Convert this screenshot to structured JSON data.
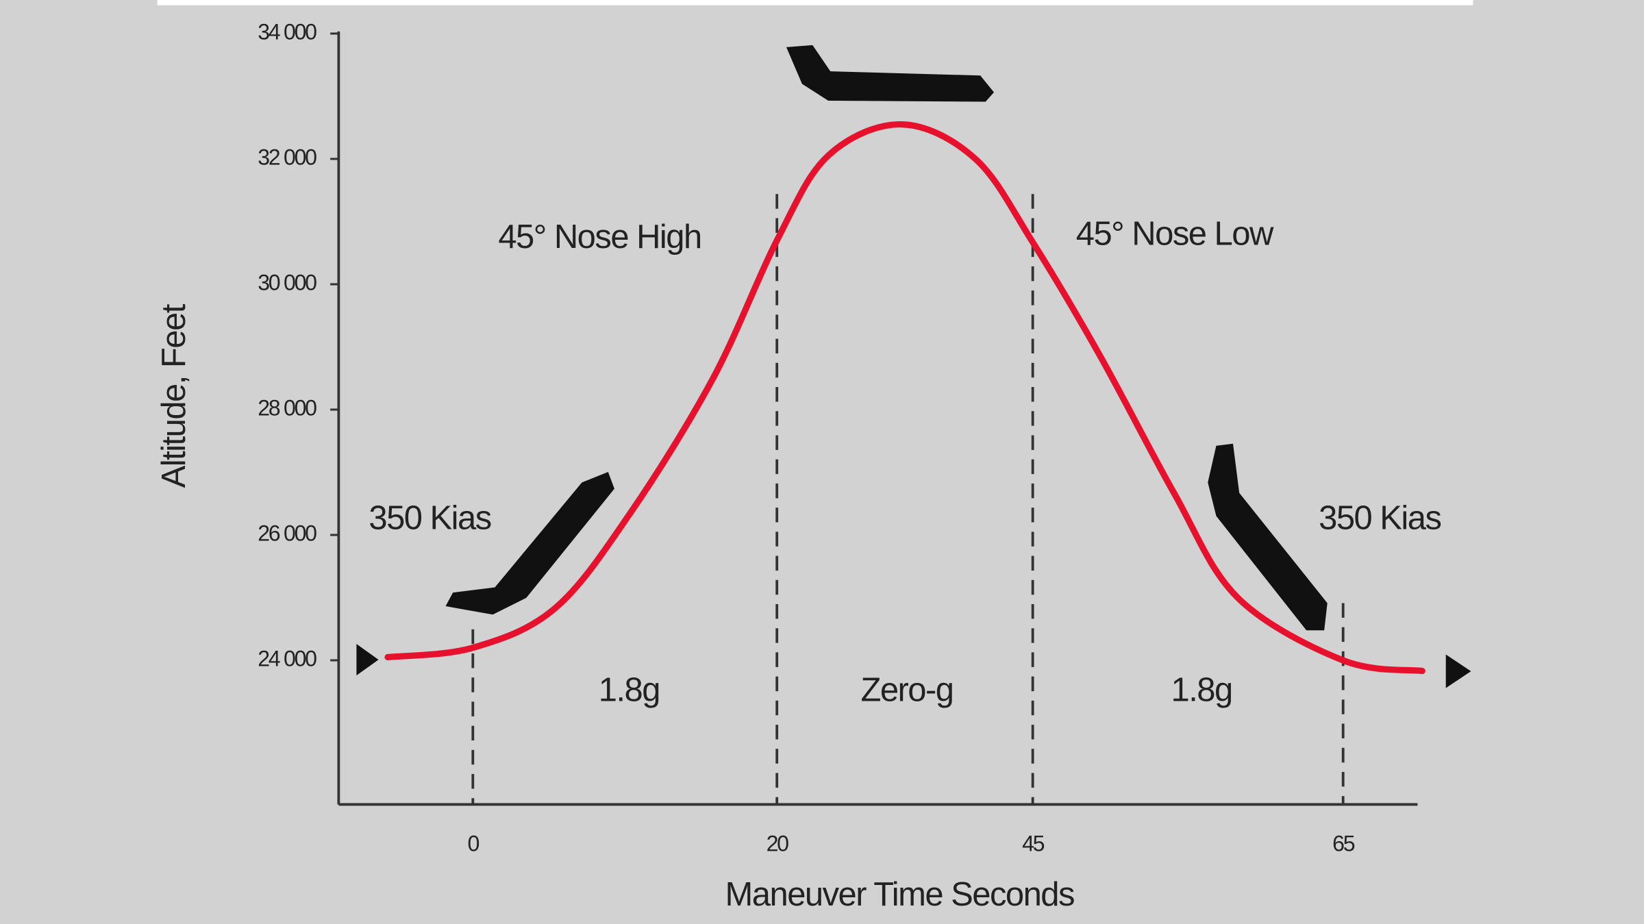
{
  "chart_data": {
    "type": "line",
    "x_label": "Maneuver Time Seconds",
    "y_label": "Altitude, Feet",
    "x": [
      -5.6,
      0,
      5.4,
      10.3,
      15.8,
      20,
      25.0,
      32.2,
      39.4,
      45,
      49.4,
      54.1,
      58.2,
      65,
      70.1
    ],
    "values": [
      24050,
      24200,
      24830,
      26330,
      28500,
      30700,
      32050,
      32550,
      32000,
      30670,
      28830,
      26670,
      25000,
      24000,
      23830
    ],
    "color": "#e8112d",
    "xlim": [
      -8.8,
      69.7
    ],
    "xticks": [
      0,
      20,
      45,
      65
    ],
    "ylim": [
      21700,
      34000
    ],
    "yticks": [
      {
        "value": 24000,
        "label": "24 000"
      },
      {
        "value": 26000,
        "label": "26 000"
      },
      {
        "value": 28000,
        "label": "28 000"
      },
      {
        "value": 30000,
        "label": "30 000"
      },
      {
        "value": 32000,
        "label": "32 000"
      },
      {
        "value": 34000,
        "label": "34 000"
      }
    ],
    "annotations": [
      "45° Nose High",
      "45° Nose Low",
      "350 Kias",
      "350 Kias",
      "1.8g",
      "Zero-g",
      "1.8g"
    ]
  }
}
